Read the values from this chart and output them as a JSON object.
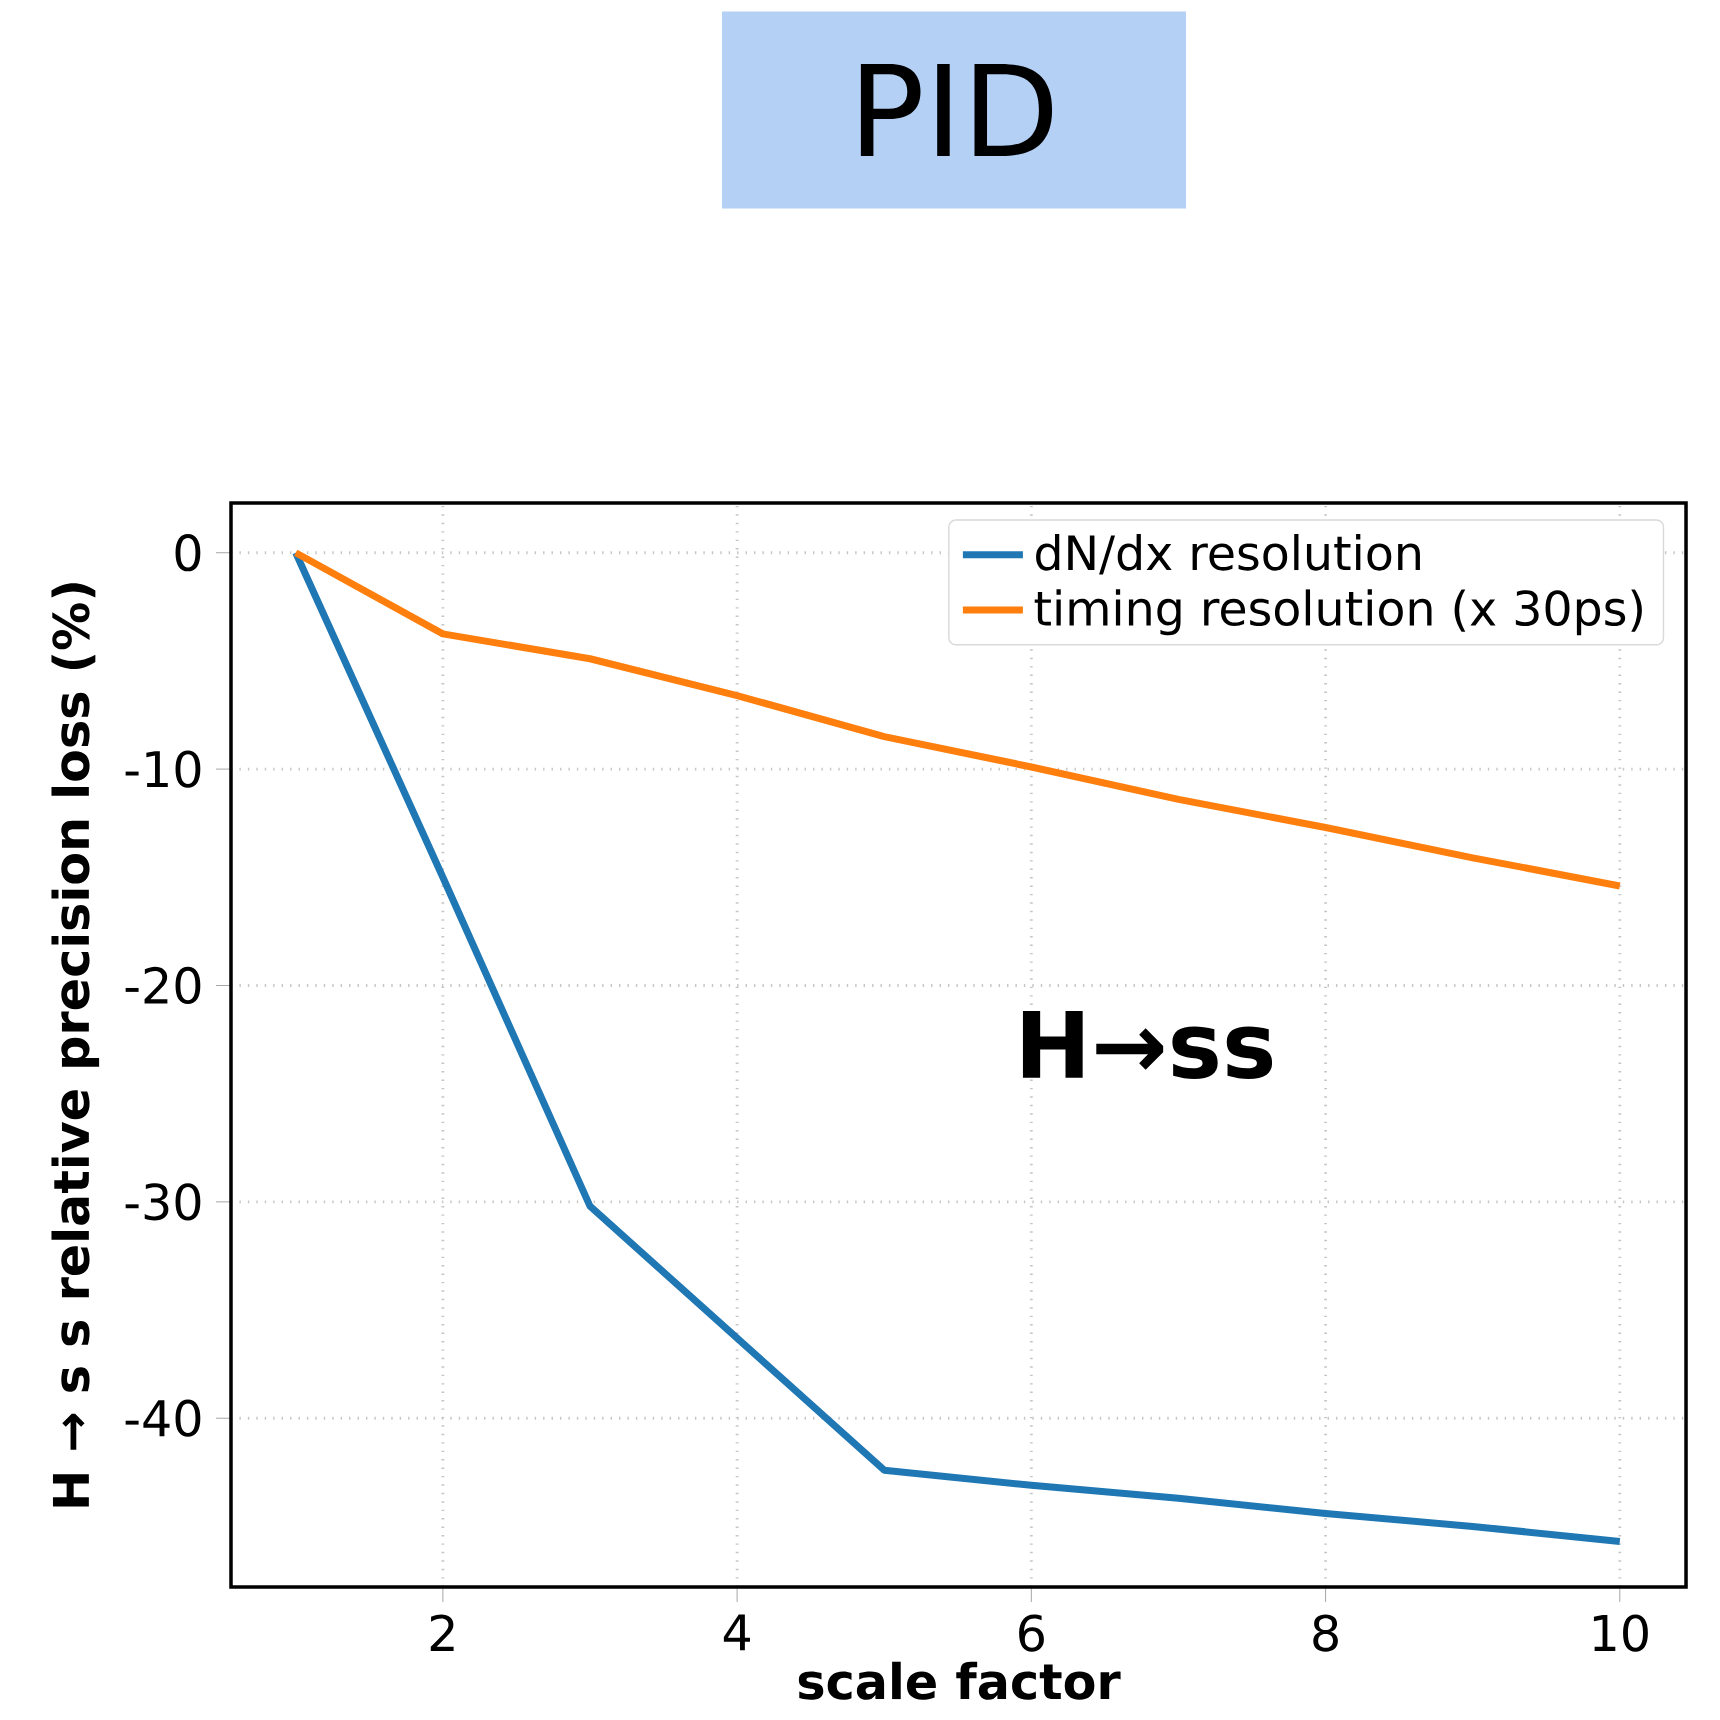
{
  "chart_data": {
    "type": "line",
    "title": "PID",
    "xlabel": "scale factor",
    "ylabel": "H → s s relative precision loss (%)",
    "x": [
      1,
      2,
      3,
      4,
      5,
      6,
      7,
      8,
      9,
      10
    ],
    "series": [
      {
        "name": "dN/dx resolution",
        "color": "#1f77b4",
        "values": [
          0,
          -15.0,
          -30.2,
          -36.3,
          -42.4,
          -43.1,
          -43.7,
          -44.4,
          -45.0,
          -45.7
        ]
      },
      {
        "name": "timing resolution (x 30ps)",
        "color": "#ff7f0e",
        "values": [
          0,
          -3.75,
          -4.9,
          -6.6,
          -8.5,
          -9.9,
          -11.4,
          -12.7,
          -14.1,
          -15.4
        ]
      }
    ],
    "xlim": [
      0.56,
      10.45
    ],
    "ylim": [
      -47.8,
      2.3
    ],
    "xticks": [
      2,
      4,
      6,
      8,
      10
    ],
    "yticks": [
      0,
      -10,
      -20,
      -30,
      -40
    ],
    "grid": true,
    "legend": "top right",
    "marker": "none",
    "line_style": "solid",
    "annotations": [
      "H→ss"
    ]
  }
}
